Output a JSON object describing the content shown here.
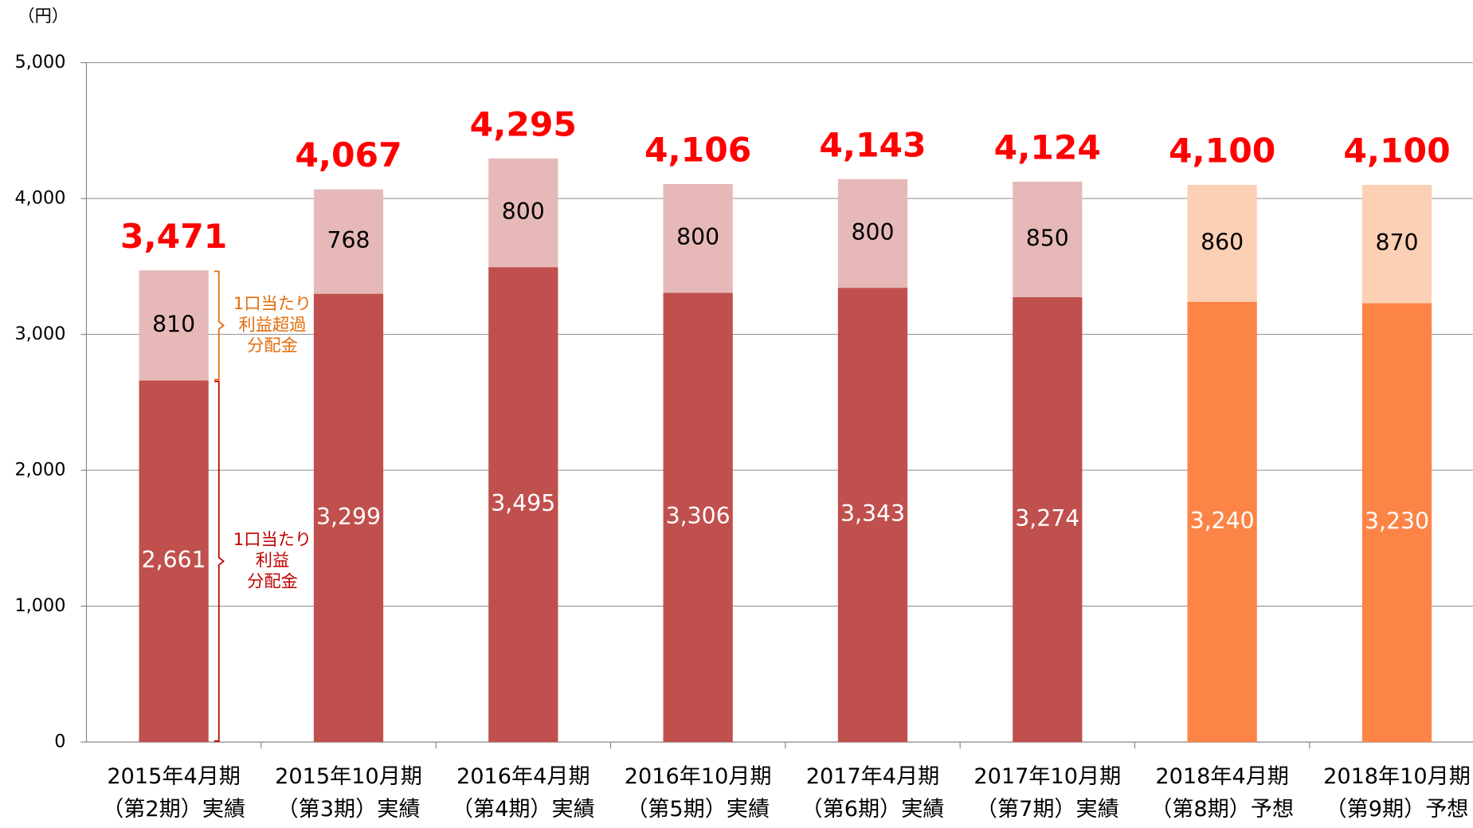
{
  "chart_data": {
    "type": "stacked_bar",
    "unit_label": "（円）",
    "categories": [
      [
        "2015年4月期",
        "（第2期）実績"
      ],
      [
        "2015年10月期",
        "（第3期）実績"
      ],
      [
        "2016年4月期",
        "（第4期）実績"
      ],
      [
        "2016年10月期",
        "（第5期）実績"
      ],
      [
        "2017年4月期",
        "（第6期）実績"
      ],
      [
        "2017年10月期",
        "（第7期）実績"
      ],
      [
        "2018年4月期",
        "（第8期）予想"
      ],
      [
        "2018年10月期",
        "（第9期）予想"
      ]
    ],
    "series": [
      {
        "name": "1口当たり利益分配金",
        "colors": [
          "#c0504d",
          "#c0504d",
          "#c0504d",
          "#c0504d",
          "#c0504d",
          "#c0504d",
          "#fd8447",
          "#fd8447"
        ],
        "label_color": "#ffffff",
        "values": [
          2661,
          3299,
          3495,
          3306,
          3343,
          3274,
          3240,
          3230
        ],
        "value_labels": [
          "2,661",
          "3,299",
          "3,495",
          "3,306",
          "3,343",
          "3,274",
          "3,240",
          "3,230"
        ]
      },
      {
        "name": "1口当たり利益超過分配金",
        "colors": [
          "#e6b9b8",
          "#e6b9b8",
          "#e6b9b8",
          "#e6b9b8",
          "#e6b9b8",
          "#e6b9b8",
          "#fcd0b4",
          "#fcd0b4"
        ],
        "label_color": "#000000",
        "values": [
          810,
          768,
          800,
          800,
          800,
          850,
          860,
          870
        ]
      }
    ],
    "total_values": [
      3471,
      4067,
      4295,
      4106,
      4143,
      4124,
      4100,
      4100
    ],
    "total_labels": [
      "3,471",
      "4,067",
      "4,295",
      "4,106",
      "4,143",
      "4,124",
      "4,100",
      "4,100"
    ],
    "total_color": "#ff0000",
    "annotations": [
      {
        "lines": [
          "1口当たり",
          "利益超過",
          "分配金"
        ],
        "color": "#e46c0a"
      },
      {
        "lines": [
          "1口当たり",
          "利益",
          "分配金"
        ],
        "color": "#c00000"
      }
    ],
    "ylim": [
      0,
      5000
    ],
    "yticks": [
      0,
      {
        "value": 1000,
        "label": "1,000"
      },
      {
        "value": 2000,
        "label": "2,000"
      },
      {
        "value": 3000,
        "label": "3,000"
      },
      {
        "value": 4000,
        "label": "4,000"
      },
      {
        "value": 5000,
        "label": "5,000"
      }
    ],
    "grid": true
  }
}
